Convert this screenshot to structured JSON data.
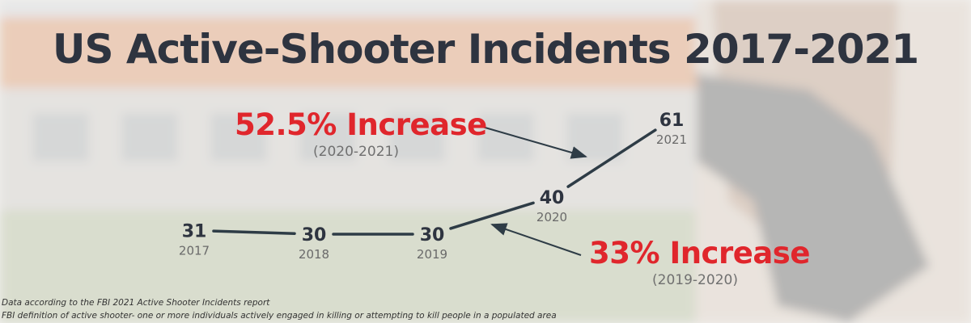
{
  "title": "US Active-Shooter Incidents 2017-2021",
  "callouts": [
    {
      "headline": "52.5% Increase",
      "period": "(2020-2021)"
    },
    {
      "headline": "33% Increase",
      "period": "(2019-2020)"
    }
  ],
  "footnotes": [
    "Data according to the FBI 2021 Active Shooter Incidents report",
    "FBI definition of active shooter- one or more individuals actively engaged in killing or attempting to kill people in a populated area"
  ],
  "colors": {
    "title": "#2e3440",
    "line": "#2e3c46",
    "accent": "#e0262c"
  },
  "chart_data": {
    "type": "line",
    "title": "US Active-Shooter Incidents 2017-2021",
    "x": [
      "2017",
      "2018",
      "2019",
      "2020",
      "2021"
    ],
    "series": [
      {
        "values": [
          31,
          30,
          30,
          40,
          61
        ]
      }
    ],
    "grid": false,
    "annotations": [
      {
        "text": "52.5% Increase",
        "sub": "(2020-2021)",
        "points_to": "2021"
      },
      {
        "text": "33% Increase",
        "sub": "(2019-2020)",
        "points_to": "2020"
      }
    ]
  }
}
